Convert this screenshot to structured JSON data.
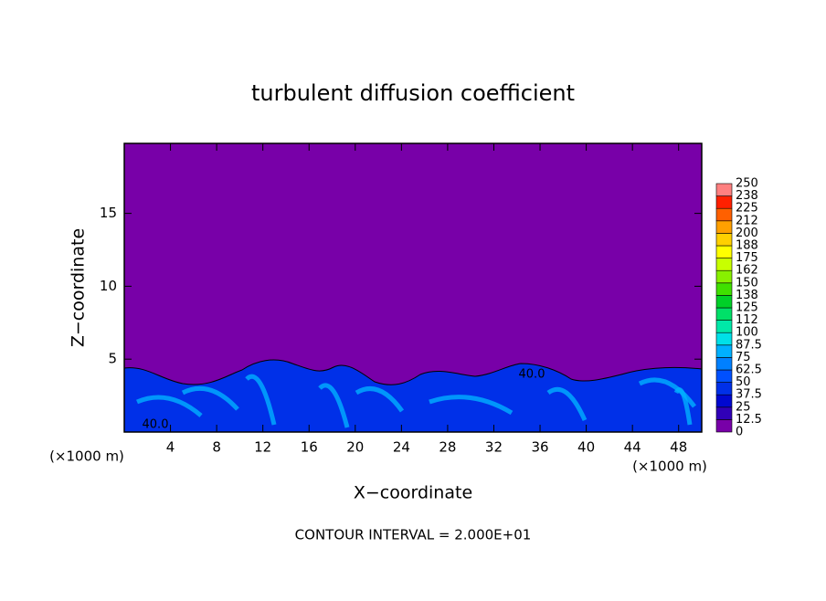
{
  "chart_data": {
    "type": "contour",
    "title": "turbulent diffusion coefficient",
    "xlabel": "X−coordinate",
    "ylabel": "Z−coordinate",
    "x_unit": "(×1000 m)",
    "xlim": [
      0,
      50
    ],
    "xticks": [
      4,
      8,
      12,
      16,
      20,
      24,
      28,
      32,
      36,
      40,
      44,
      48
    ],
    "ylim": [
      0,
      19.8
    ],
    "yticks": [
      5,
      10,
      15
    ],
    "contour_labels": [
      "40.0",
      "40.0"
    ],
    "footnote": "CONTOUR INTERVAL = 2.000E+01",
    "colorbar": {
      "levels": [
        0,
        12.5,
        25,
        37.5,
        50,
        62.5,
        75,
        87.5,
        100,
        112,
        125,
        138,
        150,
        162,
        175,
        188,
        200,
        212,
        225,
        238,
        250
      ],
      "colors": [
        "#7800a8",
        "#3000b8",
        "#0008d0",
        "#0030e8",
        "#0050ff",
        "#0080ff",
        "#00b0ff",
        "#00e0e8",
        "#00e8a8",
        "#00e068",
        "#00d028",
        "#40e000",
        "#88f000",
        "#c8ff00",
        "#ffff00",
        "#ffd000",
        "#ffa000",
        "#ff6000",
        "#ff2000",
        "#ff8080"
      ]
    }
  }
}
